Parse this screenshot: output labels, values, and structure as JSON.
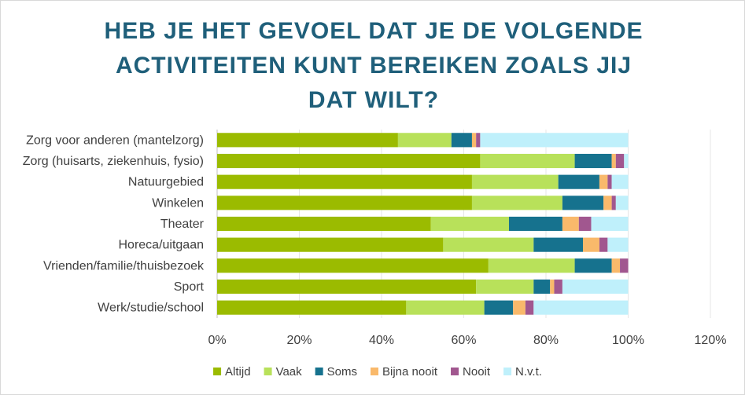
{
  "chart_data": {
    "type": "bar",
    "orientation": "horizontal",
    "stacked": true,
    "title": "HEB JE HET GEVOEL DAT JE DE VOLGENDE ACTIVITEITEN KUNT BEREIKEN ZOALS JIJ DAT WILT?",
    "categories": [
      "Zorg voor anderen (mantelzorg)",
      "Zorg (huisarts, ziekenhuis, fysio)",
      "Natuurgebied",
      "Winkelen",
      "Theater",
      "Horeca/uitgaan",
      "Vrienden/familie/thuisbezoek",
      "Sport",
      "Werk/studie/school"
    ],
    "series": [
      {
        "name": "Altijd",
        "color": "#9bbb00",
        "values": [
          44,
          64,
          62,
          62,
          52,
          55,
          66,
          63,
          46
        ]
      },
      {
        "name": "Vaak",
        "color": "#b8e15a",
        "values": [
          13,
          23,
          21,
          22,
          19,
          22,
          21,
          14,
          19
        ]
      },
      {
        "name": "Soms",
        "color": "#16728e",
        "values": [
          5,
          9,
          10,
          10,
          13,
          12,
          9,
          4,
          7
        ]
      },
      {
        "name": "Bijna nooit",
        "color": "#f9b96b",
        "values": [
          1,
          1,
          2,
          2,
          4,
          4,
          2,
          1,
          3
        ]
      },
      {
        "name": "Nooit",
        "color": "#a1578f",
        "values": [
          1,
          2,
          1,
          1,
          3,
          2,
          2,
          2,
          2
        ]
      },
      {
        "name": "N.v.t.",
        "color": "#bff0fb",
        "values": [
          36,
          1,
          4,
          3,
          9,
          5,
          0,
          16,
          23
        ]
      }
    ],
    "xlim": [
      0,
      120
    ],
    "x_ticks": [
      "0%",
      "20%",
      "40%",
      "60%",
      "80%",
      "100%",
      "120%"
    ],
    "grid": true,
    "legend_position": "bottom"
  }
}
